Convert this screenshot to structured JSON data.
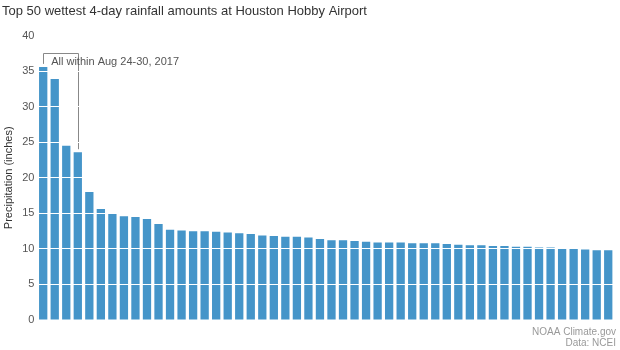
{
  "chart_data": {
    "type": "bar",
    "title": "Top 50 wettest 4-day rainfall amounts at Houston Hobby Airport",
    "y_label": "Precipitation (inches)",
    "categories": [
      null,
      null,
      null,
      null,
      null,
      null,
      null,
      null,
      null,
      null,
      null,
      null,
      null,
      null,
      null,
      null,
      null,
      null,
      null,
      null,
      null,
      null,
      null,
      null,
      null,
      null,
      null,
      null,
      null,
      null,
      null,
      null,
      null,
      null,
      null,
      null,
      null,
      null,
      null,
      null,
      null,
      null,
      null,
      null,
      null,
      null,
      null,
      null,
      null,
      null
    ],
    "values": [
      35.6,
      33.9,
      24.5,
      23.6,
      18.0,
      15.6,
      15.0,
      14.6,
      14.5,
      14.2,
      13.5,
      12.7,
      12.6,
      12.5,
      12.5,
      12.4,
      12.3,
      12.2,
      12.1,
      11.9,
      11.8,
      11.7,
      11.7,
      11.6,
      11.4,
      11.2,
      11.2,
      11.1,
      11.0,
      10.9,
      10.9,
      10.9,
      10.8,
      10.8,
      10.8,
      10.7,
      10.6,
      10.5,
      10.5,
      10.4,
      10.4,
      10.3,
      10.3,
      10.2,
      10.2,
      10.1,
      10.0,
      9.9,
      9.8,
      9.8
    ],
    "color": "#4595c9",
    "ylim": [
      0,
      40
    ],
    "yticks": [
      0,
      5,
      10,
      15,
      20,
      25,
      30,
      35,
      40
    ],
    "grid": true,
    "tick_labels": "y",
    "annotations": [
      {
        "text": "All within Aug 24-30, 2017",
        "start": 0,
        "end": 3
      }
    ],
    "credits": [
      "NOAA Climate.gov",
      "Data: NCEI"
    ]
  }
}
